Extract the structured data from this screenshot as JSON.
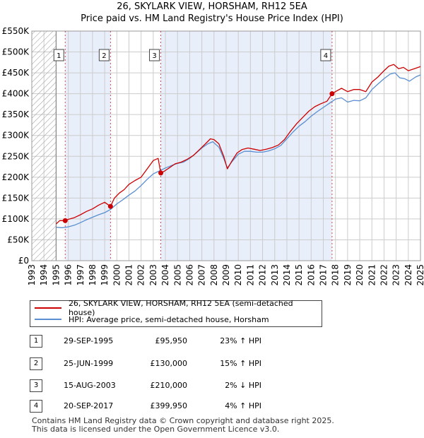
{
  "chart_data": {
    "type": "line",
    "title": "26, SKYLARK VIEW, HORSHAM, RH12 5EA",
    "subtitle": "Price paid vs. HM Land Registry's House Price Index (HPI)",
    "xlim": [
      1993,
      2025
    ],
    "ylim": [
      0,
      550000
    ],
    "x_ticks": [
      1993,
      1994,
      1995,
      1996,
      1997,
      1998,
      1999,
      2000,
      2001,
      2002,
      2003,
      2004,
      2005,
      2006,
      2007,
      2008,
      2009,
      2010,
      2011,
      2012,
      2013,
      2014,
      2015,
      2016,
      2017,
      2018,
      2019,
      2020,
      2021,
      2022,
      2023,
      2024,
      2025
    ],
    "y_ticks": [
      0,
      50000,
      100000,
      150000,
      200000,
      250000,
      300000,
      350000,
      400000,
      450000,
      500000,
      550000
    ],
    "y_tick_labels": [
      "£0",
      "£50K",
      "£100K",
      "£150K",
      "£200K",
      "£250K",
      "£300K",
      "£350K",
      "£400K",
      "£450K",
      "£500K",
      "£550K"
    ],
    "hatch_until": 1995.0,
    "highlight_bands": [
      [
        1995.75,
        1999.48
      ],
      [
        2003.62,
        2017.72
      ]
    ],
    "series": [
      {
        "name": "26, SKYLARK VIEW, HORSHAM, RH12 5EA (semi-detached house)",
        "color": "#cc0000",
        "x": [
          1995.0,
          1995.3,
          1995.75,
          1996.0,
          1996.5,
          1997.0,
          1997.5,
          1998.0,
          1998.5,
          1999.0,
          1999.48,
          1999.8,
          2000.2,
          2000.6,
          2001.0,
          2001.5,
          2002.0,
          2002.5,
          2003.0,
          2003.4,
          2003.62,
          2003.9,
          2004.3,
          2004.8,
          2005.3,
          2005.8,
          2006.3,
          2006.8,
          2007.3,
          2007.7,
          2008.0,
          2008.4,
          2008.8,
          2009.1,
          2009.5,
          2009.9,
          2010.3,
          2010.8,
          2011.3,
          2011.8,
          2012.3,
          2012.8,
          2013.3,
          2013.8,
          2014.3,
          2014.8,
          2015.3,
          2015.8,
          2016.3,
          2016.8,
          2017.3,
          2017.72,
          2018.0,
          2018.5,
          2019.0,
          2019.5,
          2020.0,
          2020.5,
          2021.0,
          2021.5,
          2022.0,
          2022.4,
          2022.8,
          2023.2,
          2023.6,
          2024.0,
          2024.5,
          2025.0
        ],
        "values": [
          88000,
          96000,
          95950,
          99000,
          103000,
          110000,
          118000,
          124000,
          133000,
          140000,
          130000,
          150000,
          162000,
          170000,
          183000,
          192000,
          200000,
          220000,
          240000,
          245000,
          210000,
          214000,
          222000,
          232000,
          236000,
          243000,
          252000,
          266000,
          280000,
          292000,
          290000,
          280000,
          250000,
          220000,
          240000,
          258000,
          266000,
          270000,
          267000,
          264000,
          267000,
          271000,
          277000,
          290000,
          310000,
          328000,
          343000,
          358000,
          369000,
          376000,
          382000,
          399950,
          405000,
          413000,
          405000,
          410000,
          410000,
          405000,
          428000,
          440000,
          455000,
          466000,
          470000,
          460000,
          463000,
          455000,
          460000,
          465000
        ]
      },
      {
        "name": "HPI: Average price, semi-detached house, Horsham",
        "color": "#5b8fd1",
        "x": [
          1995.0,
          1995.5,
          1996.0,
          1996.5,
          1997.0,
          1997.5,
          1998.0,
          1998.5,
          1999.0,
          1999.5,
          2000.0,
          2000.5,
          2001.0,
          2001.5,
          2002.0,
          2002.5,
          2003.0,
          2003.5,
          2004.0,
          2004.5,
          2005.0,
          2005.5,
          2006.0,
          2006.5,
          2007.0,
          2007.5,
          2007.9,
          2008.4,
          2008.8,
          2009.1,
          2009.5,
          2010.0,
          2010.5,
          2011.0,
          2011.5,
          2012.0,
          2012.5,
          2013.0,
          2013.5,
          2014.0,
          2014.5,
          2015.0,
          2015.5,
          2016.0,
          2016.5,
          2017.0,
          2017.5,
          2018.0,
          2018.5,
          2019.0,
          2019.5,
          2020.0,
          2020.5,
          2021.0,
          2021.5,
          2022.0,
          2022.5,
          2022.9,
          2023.3,
          2023.7,
          2024.1,
          2024.6,
          2025.0
        ],
        "values": [
          80000,
          79000,
          81000,
          85000,
          91000,
          98000,
          104000,
          110000,
          115000,
          123000,
          136000,
          146000,
          157000,
          167000,
          180000,
          195000,
          208000,
          215000,
          222000,
          228000,
          233000,
          236000,
          245000,
          257000,
          270000,
          280000,
          285000,
          272000,
          245000,
          222000,
          238000,
          255000,
          262000,
          262000,
          260000,
          260000,
          263000,
          268000,
          276000,
          292000,
          308000,
          322000,
          333000,
          346000,
          357000,
          367000,
          377000,
          387000,
          390000,
          380000,
          384000,
          383000,
          390000,
          410000,
          423000,
          436000,
          447000,
          450000,
          438000,
          436000,
          430000,
          440000,
          445000
        ]
      }
    ],
    "markers": [
      {
        "label": "1",
        "x": 1995.75,
        "value": 95950
      },
      {
        "label": "2",
        "x": 1999.48,
        "value": 130000
      },
      {
        "label": "3",
        "x": 2003.62,
        "value": 210000
      },
      {
        "label": "4",
        "x": 2017.72,
        "value": 399950
      }
    ]
  },
  "legend": {
    "property_label": "26, SKYLARK VIEW, HORSHAM, RH12 5EA (semi-detached house)",
    "hpi_label": "HPI: Average price, semi-detached house, Horsham"
  },
  "transactions": [
    {
      "num": "1",
      "date": "29-SEP-1995",
      "price": "£95,950",
      "hpi": "23% ↑ HPI"
    },
    {
      "num": "2",
      "date": "25-JUN-1999",
      "price": "£130,000",
      "hpi": "15% ↑ HPI"
    },
    {
      "num": "3",
      "date": "15-AUG-2003",
      "price": "£210,000",
      "hpi": "2% ↓ HPI"
    },
    {
      "num": "4",
      "date": "20-SEP-2017",
      "price": "£399,950",
      "hpi": "4% ↑ HPI"
    }
  ],
  "footer": {
    "line1": "Contains HM Land Registry data © Crown copyright and database right 2025.",
    "line2": "This data is licensed under the Open Government Licence v3.0."
  },
  "colors": {
    "property": "#cc0000",
    "hpi": "#5b8fd1",
    "band": "#e8eefa",
    "grid": "#cccccc"
  }
}
